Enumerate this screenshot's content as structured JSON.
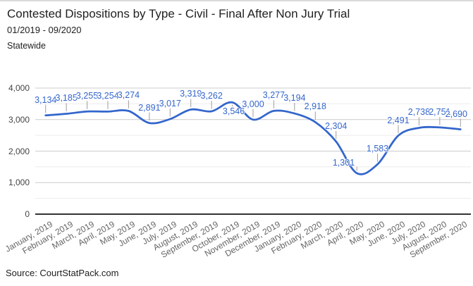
{
  "header": {
    "title": "Contested Dispositions by Type - Civil - Final After Non Jury Trial",
    "period": "01/2019 - 09/2020",
    "region": "Statewide"
  },
  "footer": {
    "source": "Source: CourtStatPack.com"
  },
  "colors": {
    "line": "#3366cc",
    "annotation_text": "#3366cc",
    "annotation_stem": "#9e9e9e",
    "grid_major": "#cccccc",
    "grid_minor": "#ebebeb",
    "baseline": "#333333",
    "x_axis_text": "#666666",
    "y_axis_text": "#444444"
  },
  "chart_data": {
    "type": "line",
    "title": "Contested Dispositions by Type - Civil - Final After Non Jury Trial",
    "subtitle": "01/2019 - 09/2020",
    "region": "Statewide",
    "legend": "none",
    "grid": true,
    "curve": "smooth",
    "xlabel": "",
    "ylabel": "",
    "ylim": [
      0,
      4000
    ],
    "y_tick_values": [
      0,
      1000,
      2000,
      3000,
      4000
    ],
    "y_tick_labels": [
      "0",
      "1,000",
      "2,000",
      "3,000",
      "4,000"
    ],
    "minor_grid_step": 500,
    "categories": [
      "January, 2019",
      "February, 2019",
      "March, 2019",
      "April, 2019",
      "May, 2019",
      "June, 2019",
      "July, 2019",
      "August, 2019",
      "September, 2019",
      "October, 2019",
      "November, 2019",
      "December, 2019",
      "January, 2020",
      "February, 2020",
      "March, 2020",
      "April, 2020",
      "May, 2020",
      "June, 2020",
      "July, 2020",
      "August, 2020",
      "September, 2020"
    ],
    "values": [
      3134,
      3185,
      3255,
      3254,
      3274,
      2891,
      3017,
      3319,
      3262,
      3546,
      3000,
      3277,
      3194,
      2918,
      2304,
      1301,
      1583,
      2491,
      2738,
      2751,
      2690
    ],
    "point_labels": [
      "3,134",
      "3,185",
      "3,255",
      "3,254",
      "3,274",
      "2,891",
      "3,017",
      "3,319",
      "3,262",
      "3,546",
      "3,000",
      "3,277",
      "3,194",
      "2,918",
      "2,304",
      "1,301",
      "1,583",
      "2,491",
      "2,738",
      "2,751",
      "2,690"
    ]
  }
}
